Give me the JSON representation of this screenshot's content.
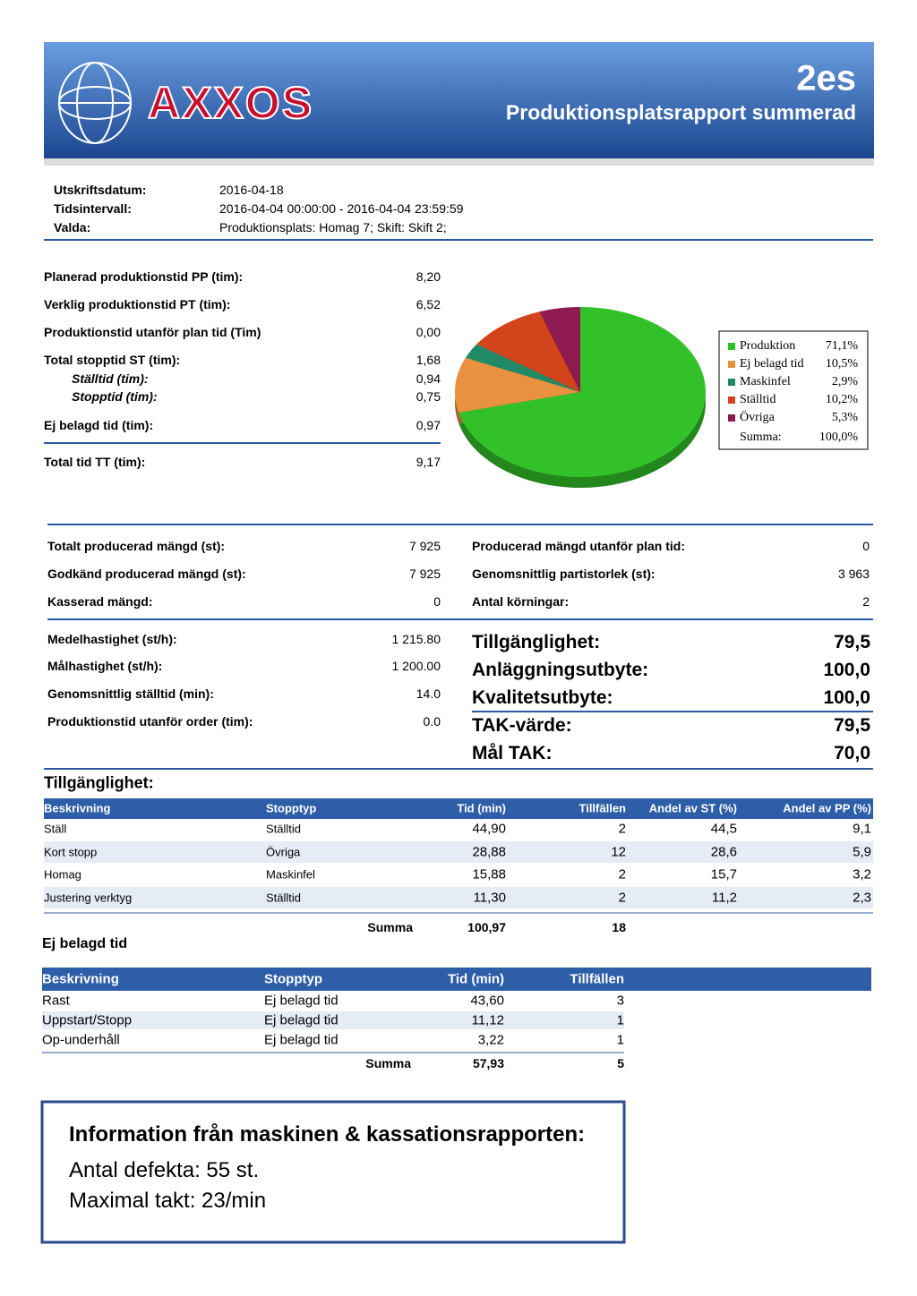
{
  "header": {
    "logo": "AXXOS",
    "code": "2es",
    "title": "Produktionsplatsrapport summerad"
  },
  "meta": [
    [
      "Utskriftsdatum:",
      "2016-04-18"
    ],
    [
      "Tidsintervall:",
      "2016-04-04 00:00:00 - 2016-04-04 23:59:59"
    ],
    [
      "Valda:",
      "Produktionsplats: Homag 7; Skift: Skift 2;"
    ]
  ],
  "times": [
    [
      "Planerad produktionstid PP (tim):",
      "8,20"
    ],
    [
      "Verklig produktionstid PT (tim):",
      "6,52"
    ],
    [
      "Produktionstid utanför plan tid (Tim)",
      "0,00"
    ],
    [
      "Total stopptid ST (tim):",
      "1,68"
    ],
    [
      "Ställtid (tim):",
      "0,94"
    ],
    [
      "Stopptid (tim):",
      "0,75"
    ],
    [
      "Ej belagd tid  (tim):",
      "0,97"
    ],
    [
      "Total tid TT (tim):",
      "9,17"
    ]
  ],
  "chart_data": {
    "type": "pie",
    "categories": [
      "Produktion",
      "Ej belagd tid",
      "Maskinfel",
      "Ställtid",
      "Övriga"
    ],
    "values": [
      71.1,
      10.5,
      2.9,
      10.2,
      5.3
    ],
    "value_labels": [
      "71,1%",
      "10,5%",
      "2,9%",
      "10,2%",
      "5,3%"
    ],
    "colors": [
      "#33c12a",
      "#e8913f",
      "#1e8a66",
      "#d2441c",
      "#8e1a4f"
    ],
    "total_label": "Summa:",
    "total_value_label": "100,0%"
  },
  "quantities_left": [
    [
      "Totalt producerad mängd (st):",
      "7 925"
    ],
    [
      "Godkänd producerad mängd (st):",
      "7 925"
    ],
    [
      "Kasserad mängd:",
      "0"
    ]
  ],
  "quantities_right": [
    [
      "Producerad mängd utanför plan tid:",
      "0"
    ],
    [
      "Genomsnittlig partistorlek (st):",
      "3 963"
    ],
    [
      "Antal körningar:",
      "2"
    ]
  ],
  "speeds": [
    [
      "Medelhastighet (st/h):",
      "1 215.80"
    ],
    [
      "Målhastighet (st/h):",
      "1 200.00"
    ],
    [
      "Genomsnittlig ställtid (min):",
      "14.0"
    ],
    [
      "Produktionstid utanför order (tim):",
      "0.0"
    ]
  ],
  "kpis": [
    [
      "Tillgänglighet:",
      "79,5"
    ],
    [
      "Anläggningsutbyte:",
      "100,0"
    ],
    [
      "Kvalitetsutbyte:",
      "100,0"
    ],
    [
      "TAK-värde:",
      "79,5"
    ],
    [
      "Mål TAK:",
      "70,0"
    ]
  ],
  "availability": {
    "title": "Tillgänglighet:",
    "headers": [
      "Beskrivning",
      "Stopptyp",
      "Tid (min)",
      "Tillfällen",
      "Andel av ST (%)",
      "Andel av PP (%)"
    ],
    "rows": [
      [
        "Ställ",
        "Ställtid",
        "44,90",
        "2",
        "44,5",
        "9,1"
      ],
      [
        "Kort stopp",
        "Övriga",
        "28,88",
        "12",
        "28,6",
        "5,9"
      ],
      [
        "Homag",
        "Maskinfel",
        "15,88",
        "2",
        "15,7",
        "3,2"
      ],
      [
        "Justering verktyg",
        "Ställtid",
        "11,30",
        "2",
        "11,2",
        "2,3"
      ]
    ],
    "sum": [
      "Summa",
      "100,97",
      "18"
    ]
  },
  "not_occupied": {
    "title": "Ej belagd tid",
    "headers": [
      "Beskrivning",
      "Stopptyp",
      "Tid (min)",
      "Tillfällen"
    ],
    "rows": [
      [
        "Rast",
        "Ej belagd tid",
        "43,60",
        "3"
      ],
      [
        "Uppstart/Stopp",
        "Ej belagd tid",
        "11,12",
        "1"
      ],
      [
        "Op-underhåll",
        "Ej belagd tid",
        "3,22",
        "1"
      ]
    ],
    "sum": [
      "Summa",
      "57,93",
      "5"
    ]
  },
  "info": {
    "title": "Information från maskinen & kassationsrapporten:",
    "lines": [
      "Antal defekta: 55 st.",
      "Maximal takt: 23/min"
    ]
  }
}
